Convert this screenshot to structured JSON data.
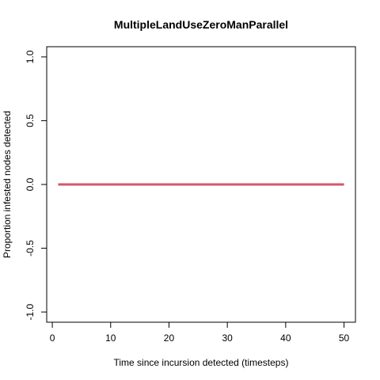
{
  "chart_data": {
    "type": "line",
    "title": "MultipleLandUseZeroManParallel",
    "xlabel": "Time since incursion detected (timesteps)",
    "ylabel": "Proportion infested nodes detected",
    "xlim": [
      -0.96,
      51.96
    ],
    "ylim": [
      -1.08,
      1.08
    ],
    "x_ticks": [
      0,
      10,
      20,
      30,
      40,
      50
    ],
    "y_ticks": [
      -1.0,
      -0.5,
      0.0,
      0.5,
      1.0
    ],
    "x_tick_labels": [
      "0",
      "10",
      "20",
      "30",
      "40",
      "50"
    ],
    "y_tick_labels": [
      "-1.0",
      "-0.5",
      "0.0",
      "0.5",
      "1.0"
    ],
    "series": [
      {
        "color": "#d6566b",
        "x": [
          1,
          50
        ],
        "values": [
          0,
          0
        ]
      }
    ]
  }
}
